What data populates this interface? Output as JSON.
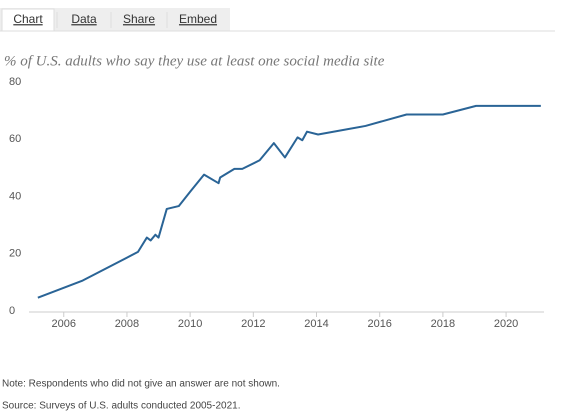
{
  "tabs": [
    "Chart",
    "Data",
    "Share",
    "Embed"
  ],
  "chart_data": {
    "type": "line",
    "title": "% of U.S. adults who say they use at least one social media site",
    "note": "Note: Respondents who did not give an answer are not shown.",
    "source": "Source: Surveys of U.S. adults conducted 2005-2021.",
    "x": [
      2005.18,
      2006.6,
      2008.35,
      2008.63,
      2008.75,
      2008.9,
      2009.0,
      2009.26,
      2009.64,
      2010.0,
      2010.44,
      2010.9,
      2010.95,
      2011.4,
      2011.65,
      2012.2,
      2012.65,
      2013.0,
      2013.4,
      2013.55,
      2013.7,
      2014.05,
      2015.55,
      2016.85,
      2018.0,
      2019.05,
      2021.1
    ],
    "series": [
      {
        "color": "#2a6496",
        "values": [
          5,
          11,
          21,
          26,
          25,
          27,
          26,
          36,
          37,
          42,
          48,
          45,
          47,
          50,
          50,
          53,
          59,
          54,
          61,
          60,
          63,
          62,
          65,
          69,
          69,
          72,
          72
        ]
      }
    ],
    "xlim": [
      2004.9,
      2021.2
    ],
    "xticks": [
      2006,
      2008,
      2010,
      2012,
      2014,
      2016,
      2018,
      2020
    ],
    "ylim": [
      0,
      80
    ],
    "yticks": [
      0,
      20,
      40,
      60,
      80
    ]
  }
}
